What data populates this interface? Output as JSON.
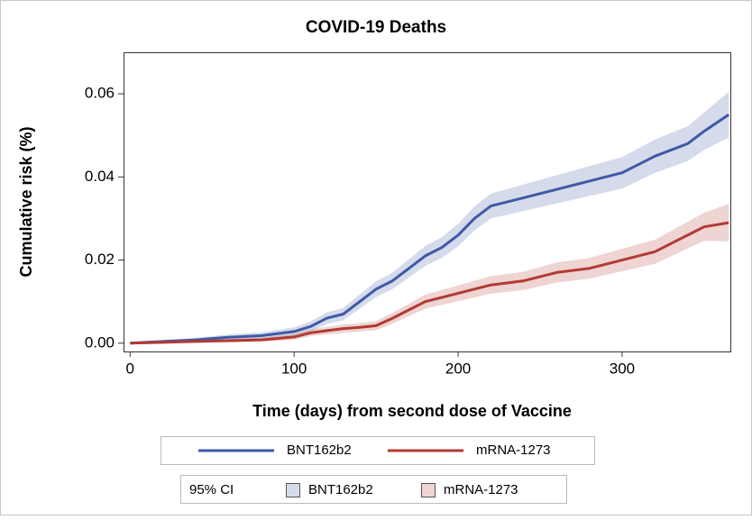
{
  "chart_data": {
    "type": "line",
    "title": "COVID-19 Deaths",
    "x_label": "Time (days) from second dose of Vaccine",
    "y_label": "Cumulative risk (%)",
    "ci_legend_title": "95% CI",
    "x": [
      0,
      20,
      40,
      60,
      80,
      100,
      110,
      120,
      130,
      140,
      150,
      160,
      170,
      180,
      190,
      200,
      210,
      220,
      240,
      260,
      280,
      300,
      320,
      340,
      350,
      365
    ],
    "series": [
      {
        "name": "BNT162b2",
        "color": "#3f59a6",
        "values": [
          0,
          0.0004,
          0.0008,
          0.0014,
          0.0018,
          0.0028,
          0.004,
          0.006,
          0.007,
          0.01,
          0.013,
          0.015,
          0.018,
          0.021,
          0.023,
          0.026,
          0.03,
          0.033,
          0.035,
          0.037,
          0.039,
          0.041,
          0.045,
          0.048,
          0.051,
          0.055
        ],
        "lower": [
          0,
          0.0001,
          0.0003,
          0.0007,
          0.001,
          0.0018,
          0.0028,
          0.0046,
          0.0055,
          0.0083,
          0.0111,
          0.013,
          0.0158,
          0.0186,
          0.0205,
          0.0233,
          0.0271,
          0.03,
          0.0318,
          0.0336,
          0.0354,
          0.0372,
          0.041,
          0.0438,
          0.0465,
          0.0495
        ],
        "upper": [
          0,
          0.0007,
          0.0013,
          0.0021,
          0.0026,
          0.0038,
          0.0052,
          0.0074,
          0.0085,
          0.0117,
          0.0149,
          0.017,
          0.0202,
          0.0234,
          0.0255,
          0.0287,
          0.0329,
          0.036,
          0.0382,
          0.0404,
          0.0426,
          0.0448,
          0.049,
          0.0522,
          0.0555,
          0.0605
        ]
      },
      {
        "name": "mRNA-1273",
        "color": "#b23a33",
        "values": [
          0,
          0.0002,
          0.0004,
          0.0006,
          0.0008,
          0.0015,
          0.0025,
          0.003,
          0.0035,
          0.0038,
          0.0042,
          0.006,
          0.008,
          0.01,
          0.011,
          0.012,
          0.013,
          0.014,
          0.015,
          0.017,
          0.018,
          0.02,
          0.022,
          0.026,
          0.028,
          0.029
        ],
        "lower": [
          0,
          0,
          0.0001,
          0.0002,
          0.0003,
          0.0008,
          0.0017,
          0.0021,
          0.0025,
          0.0028,
          0.0031,
          0.0047,
          0.0065,
          0.0083,
          0.0092,
          0.0101,
          0.011,
          0.0119,
          0.0128,
          0.0146,
          0.0155,
          0.0173,
          0.0191,
          0.0228,
          0.0246,
          0.0245
        ],
        "upper": [
          0,
          0.0004,
          0.0007,
          0.001,
          0.0013,
          0.0022,
          0.0033,
          0.0039,
          0.0045,
          0.0048,
          0.0053,
          0.0073,
          0.0095,
          0.0117,
          0.0128,
          0.0139,
          0.015,
          0.0161,
          0.0172,
          0.0194,
          0.0205,
          0.0227,
          0.0249,
          0.0292,
          0.0314,
          0.0335
        ]
      }
    ],
    "xlim": [
      -4,
      366
    ],
    "ylim": [
      -0.002,
      0.07
    ],
    "xticks": [
      0,
      100,
      200,
      300
    ],
    "yticks": [
      {
        "value": 0,
        "label": "0.00"
      },
      {
        "value": 0.02,
        "label": "0.02"
      },
      {
        "value": 0.04,
        "label": "0.04"
      },
      {
        "value": 0.06,
        "label": "0.06"
      }
    ],
    "grid": false
  }
}
